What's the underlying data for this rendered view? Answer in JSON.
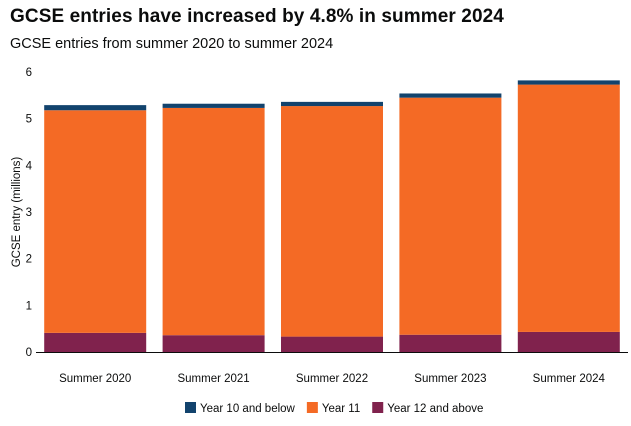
{
  "chart_data": {
    "type": "bar",
    "stacked": true,
    "title": "GCSE entries have increased by 4.8% in summer 2024",
    "subtitle": "GCSE entries from summer 2020 to summer 2024",
    "xlabel": "",
    "ylabel": "GCSE entry (millions)",
    "ylim": [
      0,
      6
    ],
    "yticks": [
      "0",
      "1",
      "2",
      "3",
      "4",
      "5",
      "6"
    ],
    "grid": false,
    "legend_position": "bottom",
    "categories": [
      "Summer 2020",
      "Summer 2021",
      "Summer 2022",
      "Summer 2023",
      "Summer 2024"
    ],
    "series": [
      {
        "name": "Year 12 and above",
        "color": "#80224d",
        "values": [
          0.41,
          0.36,
          0.33,
          0.37,
          0.43
        ]
      },
      {
        "name": "Year 11",
        "color": "#f46a25",
        "values": [
          4.77,
          4.87,
          4.94,
          5.08,
          5.3
        ]
      },
      {
        "name": "Year 10 and below",
        "color": "#12436d",
        "values": [
          0.11,
          0.09,
          0.09,
          0.09,
          0.09
        ]
      }
    ],
    "legend": [
      {
        "name": "Year 10 and below",
        "color": "#12436d"
      },
      {
        "name": "Year 11",
        "color": "#f46a25"
      },
      {
        "name": "Year 12 and above",
        "color": "#80224d"
      }
    ]
  }
}
